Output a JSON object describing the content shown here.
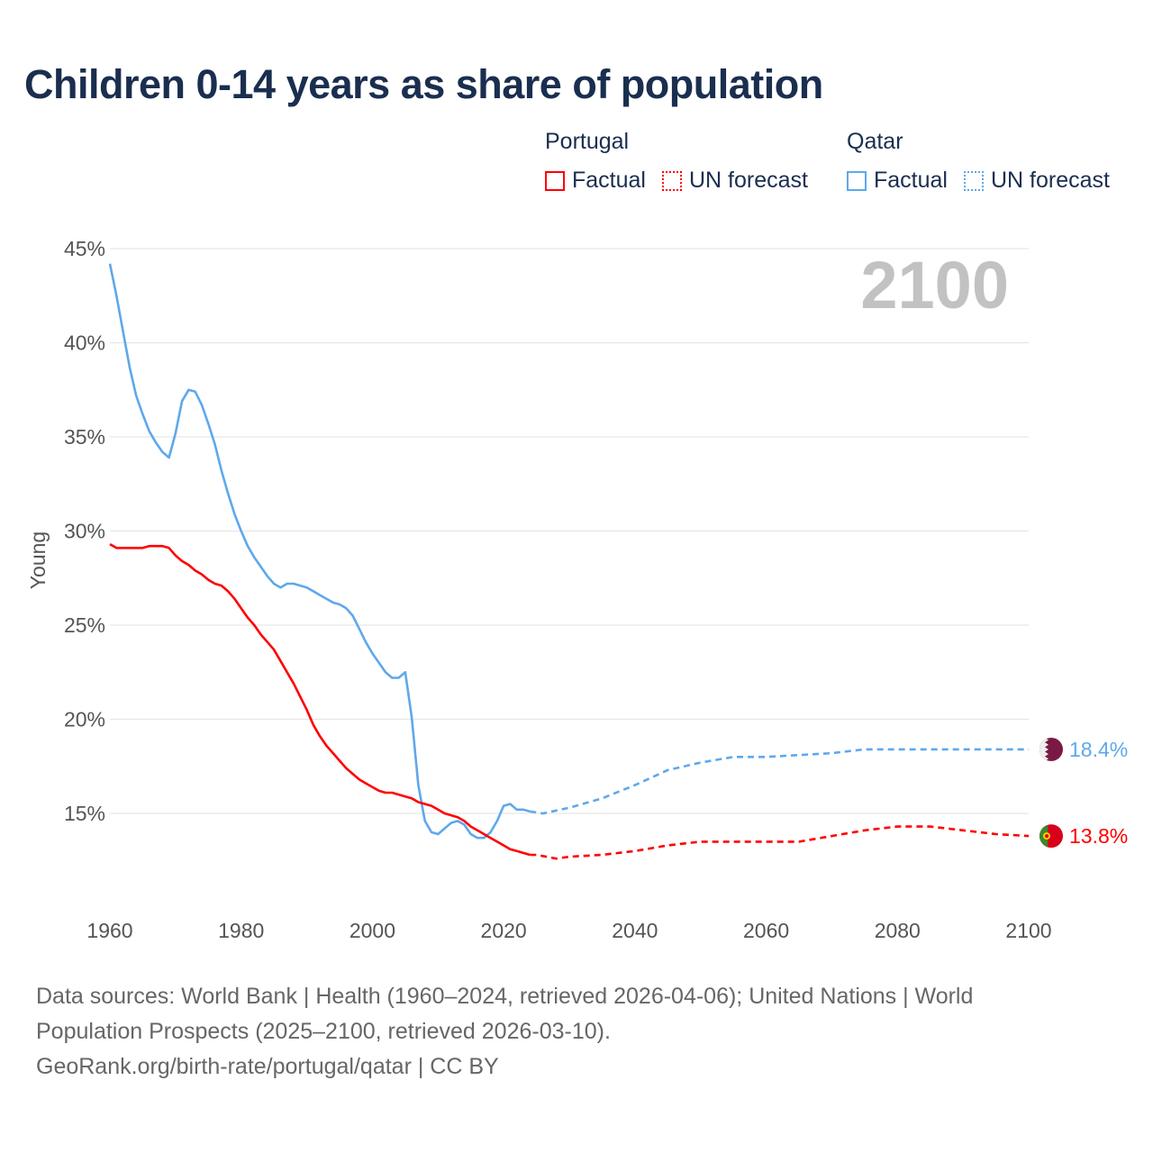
{
  "title": "Children 0-14 years as share of population",
  "legend": {
    "groups": [
      {
        "name": "Portugal",
        "color": "#ff0000",
        "factual": "Factual",
        "forecast": "UN forecast"
      },
      {
        "name": "Qatar",
        "color": "#5ea8ec",
        "factual": "Factual",
        "forecast": "UN forecast"
      }
    ]
  },
  "year_label": "2100",
  "footer": {
    "line1": "Data sources: World Bank | Health (1960–2024, retrieved 2026-04-06); United Nations | World",
    "line2": "Population Prospects (2025–2100, retrieved 2026-03-10).",
    "line3": "GeoRank.org/birth-rate/portugal/qatar | CC BY"
  },
  "chart_data": {
    "type": "line",
    "title": "Children 0-14 years as share of population",
    "ylabel": "Young",
    "xlabel": "",
    "xlim": [
      1960,
      2100
    ],
    "ylim": [
      10.5,
      45
    ],
    "xticks": [
      "1960",
      "1980",
      "2000",
      "2020",
      "2040",
      "2060",
      "2080",
      "2100"
    ],
    "yticks": [
      {
        "v": 45,
        "label": "45%"
      },
      {
        "v": 40,
        "label": "40%"
      },
      {
        "v": 35,
        "label": "35%"
      },
      {
        "v": 30,
        "label": "30%"
      },
      {
        "v": 25,
        "label": "25%"
      },
      {
        "v": 20,
        "label": "20%"
      },
      {
        "v": 15,
        "label": "15%"
      }
    ],
    "grid": true,
    "series": [
      {
        "name": "Qatar",
        "color": "#5ea8ec",
        "end_label": "18.4%",
        "factual": {
          "x": [
            1960,
            1961,
            1962,
            1963,
            1964,
            1965,
            1966,
            1967,
            1968,
            1969,
            1970,
            1971,
            1972,
            1973,
            1974,
            1975,
            1976,
            1977,
            1978,
            1979,
            1980,
            1981,
            1982,
            1983,
            1984,
            1985,
            1986,
            1987,
            1988,
            1989,
            1990,
            1991,
            1992,
            1993,
            1994,
            1995,
            1996,
            1997,
            1998,
            1999,
            2000,
            2001,
            2002,
            2003,
            2004,
            2005,
            2006,
            2007,
            2008,
            2009,
            2010,
            2011,
            2012,
            2013,
            2014,
            2015,
            2016,
            2017,
            2018,
            2019,
            2020,
            2021,
            2022,
            2023,
            2024
          ],
          "y": [
            44.2,
            42.5,
            40.6,
            38.7,
            37.2,
            36.2,
            35.3,
            34.7,
            34.2,
            33.9,
            35.2,
            36.9,
            37.5,
            37.4,
            36.7,
            35.7,
            34.6,
            33.2,
            32.0,
            30.9,
            30.0,
            29.2,
            28.6,
            28.1,
            27.6,
            27.2,
            27.0,
            27.2,
            27.2,
            27.1,
            27.0,
            26.8,
            26.6,
            26.4,
            26.2,
            26.1,
            25.9,
            25.5,
            24.8,
            24.1,
            23.5,
            23.0,
            22.5,
            22.2,
            22.2,
            22.5,
            20.1,
            16.5,
            14.6,
            14.0,
            13.9,
            14.2,
            14.5,
            14.6,
            14.4,
            13.9,
            13.7,
            13.7,
            14.0,
            14.6,
            15.4,
            15.5,
            15.2,
            15.2,
            15.1
          ]
        },
        "forecast": {
          "x": [
            2024,
            2026,
            2030,
            2035,
            2040,
            2045,
            2050,
            2055,
            2060,
            2065,
            2070,
            2075,
            2080,
            2085,
            2090,
            2095,
            2100
          ],
          "y": [
            15.1,
            15.0,
            15.3,
            15.8,
            16.5,
            17.3,
            17.7,
            18.0,
            18.0,
            18.1,
            18.2,
            18.4,
            18.4,
            18.4,
            18.4,
            18.4,
            18.4
          ]
        }
      },
      {
        "name": "Portugal",
        "color": "#ff0000",
        "end_label": "13.8%",
        "factual": {
          "x": [
            1960,
            1961,
            1962,
            1963,
            1964,
            1965,
            1966,
            1967,
            1968,
            1969,
            1970,
            1971,
            1972,
            1973,
            1974,
            1975,
            1976,
            1977,
            1978,
            1979,
            1980,
            1981,
            1982,
            1983,
            1984,
            1985,
            1986,
            1987,
            1988,
            1989,
            1990,
            1991,
            1992,
            1993,
            1994,
            1995,
            1996,
            1997,
            1998,
            1999,
            2000,
            2001,
            2002,
            2003,
            2004,
            2005,
            2006,
            2007,
            2008,
            2009,
            2010,
            2011,
            2012,
            2013,
            2014,
            2015,
            2016,
            2017,
            2018,
            2019,
            2020,
            2021,
            2022,
            2023,
            2024
          ],
          "y": [
            29.3,
            29.1,
            29.1,
            29.1,
            29.1,
            29.1,
            29.2,
            29.2,
            29.2,
            29.1,
            28.7,
            28.4,
            28.2,
            27.9,
            27.7,
            27.4,
            27.2,
            27.1,
            26.8,
            26.4,
            25.9,
            25.4,
            25.0,
            24.5,
            24.1,
            23.7,
            23.1,
            22.5,
            21.9,
            21.2,
            20.5,
            19.7,
            19.1,
            18.6,
            18.2,
            17.8,
            17.4,
            17.1,
            16.8,
            16.6,
            16.4,
            16.2,
            16.1,
            16.1,
            16.0,
            15.9,
            15.8,
            15.6,
            15.5,
            15.4,
            15.2,
            15.0,
            14.9,
            14.8,
            14.6,
            14.3,
            14.1,
            13.9,
            13.7,
            13.5,
            13.3,
            13.1,
            13.0,
            12.9,
            12.8
          ]
        },
        "forecast": {
          "x": [
            2024,
            2025,
            2028,
            2030,
            2035,
            2040,
            2045,
            2050,
            2055,
            2060,
            2065,
            2070,
            2075,
            2080,
            2085,
            2090,
            2095,
            2100
          ],
          "y": [
            12.8,
            12.8,
            12.6,
            12.7,
            12.8,
            13.0,
            13.3,
            13.5,
            13.5,
            13.5,
            13.5,
            13.8,
            14.1,
            14.3,
            14.3,
            14.1,
            13.9,
            13.8
          ]
        }
      }
    ]
  }
}
